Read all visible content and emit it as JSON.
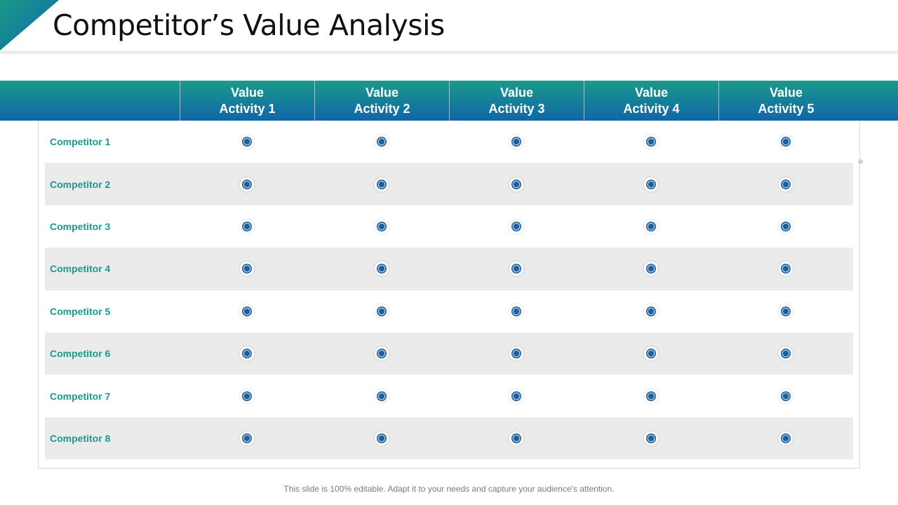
{
  "title": "Competitor’s Value Analysis",
  "columns": [
    {
      "line1": "Value",
      "line2": "Activity 1"
    },
    {
      "line1": "Value",
      "line2": "Activity 2"
    },
    {
      "line1": "Value",
      "line2": "Activity 3"
    },
    {
      "line1": "Value",
      "line2": "Activity 4"
    },
    {
      "line1": "Value",
      "line2": "Activity 5"
    }
  ],
  "rows": [
    {
      "label": "Competitor 1"
    },
    {
      "label": "Competitor 2"
    },
    {
      "label": "Competitor 3"
    },
    {
      "label": "Competitor 4"
    },
    {
      "label": "Competitor 5"
    },
    {
      "label": "Competitor 6"
    },
    {
      "label": "Competitor 7"
    },
    {
      "label": "Competitor 8"
    }
  ],
  "marker_icon": "radio-dot-icon",
  "colors": {
    "accent_teal": "#1a9a8a",
    "accent_blue": "#1066a8",
    "marker": "#1d5e9a"
  },
  "footer": "This slide is 100% editable. Adapt it to your needs and capture your audience's attention."
}
